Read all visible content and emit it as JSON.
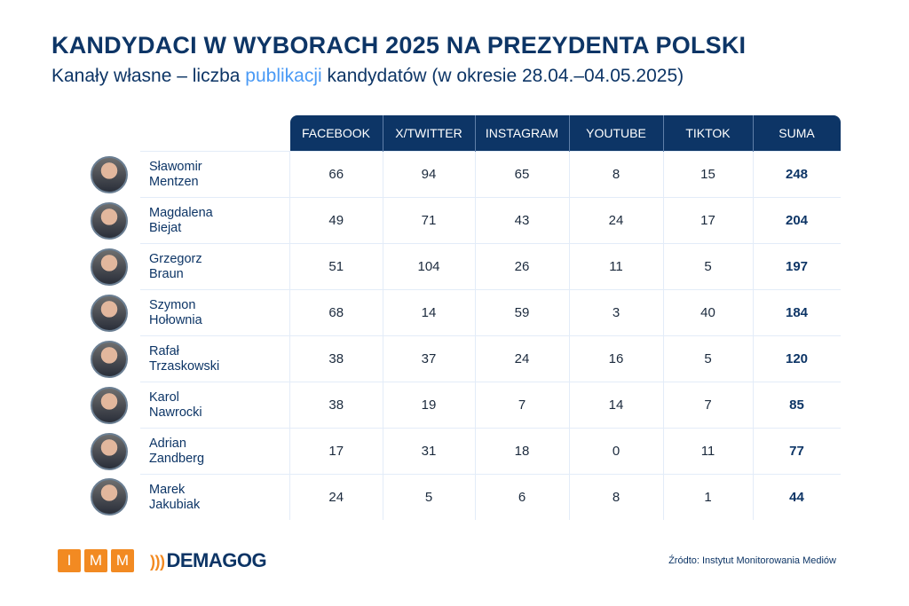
{
  "title": "KANDYDACI W WYBORACH 2025 NA PREZYDENTA POLSKI",
  "subtitle": {
    "before": "Kanały własne – liczba ",
    "highlight": "publikacji",
    "after": " kandydatów (w okresie 28.04.–04.05.2025)"
  },
  "colors": {
    "primary": "#0d3566",
    "highlight": "#4a9af5",
    "logo_orange": "#f28a22"
  },
  "table": {
    "headers": [
      "FACEBOOK",
      "X/TWITTER",
      "INSTAGRAM",
      "YOUTUBE",
      "TIKTOK",
      "SUMA"
    ],
    "rows": [
      {
        "first": "Sławomir",
        "last": "Mentzen",
        "values": [
          "66",
          "94",
          "65",
          "8",
          "15",
          "248"
        ]
      },
      {
        "first": "Magdalena",
        "last": "Biejat",
        "values": [
          "49",
          "71",
          "43",
          "24",
          "17",
          "204"
        ]
      },
      {
        "first": "Grzegorz",
        "last": "Braun",
        "values": [
          "51",
          "104",
          "26",
          "11",
          "5",
          "197"
        ]
      },
      {
        "first": "Szymon",
        "last": "Hołownia",
        "values": [
          "68",
          "14",
          "59",
          "3",
          "40",
          "184"
        ]
      },
      {
        "first": "Rafał",
        "last": "Trzaskowski",
        "values": [
          "38",
          "37",
          "24",
          "16",
          "5",
          "120"
        ]
      },
      {
        "first": "Karol",
        "last": "Nawrocki",
        "values": [
          "38",
          "19",
          "7",
          "14",
          "7",
          "85"
        ]
      },
      {
        "first": "Adrian",
        "last": "Zandberg",
        "values": [
          "17",
          "31",
          "18",
          "0",
          "11",
          "77"
        ]
      },
      {
        "first": "Marek",
        "last": "Jakubiak",
        "values": [
          "24",
          "5",
          "6",
          "8",
          "1",
          "44"
        ]
      }
    ]
  },
  "footer": {
    "imm_letters": [
      "I",
      "M",
      "M"
    ],
    "demagog": "DEMAGOG",
    "source": "Źródto: Instytut Monitorowania Mediów"
  }
}
